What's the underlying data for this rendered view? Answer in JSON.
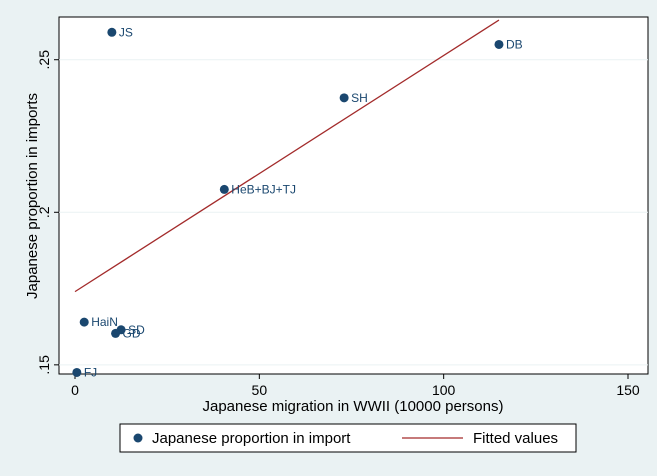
{
  "chart_data": {
    "type": "scatter",
    "title": "",
    "xlabel": "Japanese migration in WWII (10000 persons)",
    "ylabel": "Japanese proportion in imports",
    "xlim": [
      0,
      150
    ],
    "ylim": [
      0.147,
      0.264
    ],
    "xticks": [
      {
        "value": 0,
        "label": "0"
      },
      {
        "value": 50,
        "label": "50"
      },
      {
        "value": 100,
        "label": "100"
      },
      {
        "value": 150,
        "label": "150"
      }
    ],
    "yticks": [
      {
        "value": 0.15,
        "label": ".15"
      },
      {
        "value": 0.2,
        "label": ".2"
      },
      {
        "value": 0.25,
        "label": ".25"
      }
    ],
    "grid": true,
    "legend_position": "bottom",
    "series": [
      {
        "name": "Japanese proportion in import",
        "kind": "scatter",
        "color": "#1a476f",
        "points": [
          {
            "label": "JS",
            "x": 10,
            "y": 0.259
          },
          {
            "label": "DB",
            "x": 115,
            "y": 0.255
          },
          {
            "label": "SH",
            "x": 73,
            "y": 0.2375
          },
          {
            "label": "HeB+BJ+TJ",
            "x": 40.5,
            "y": 0.2075
          },
          {
            "label": "HaiN",
            "x": 2.5,
            "y": 0.164
          },
          {
            "label": "SD",
            "x": 12.5,
            "y": 0.1615
          },
          {
            "label": "GD",
            "x": 11,
            "y": 0.1603
          },
          {
            "label": "FJ",
            "x": 0.5,
            "y": 0.1475
          }
        ]
      },
      {
        "name": "Fitted values",
        "kind": "line",
        "color": "#a32b2b",
        "points": [
          {
            "x": 0,
            "y": 0.174
          },
          {
            "x": 115,
            "y": 0.263
          }
        ]
      }
    ]
  }
}
